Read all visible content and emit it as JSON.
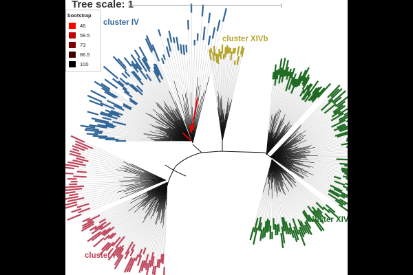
{
  "scale": {
    "title": "Tree scale: 1"
  },
  "legend": {
    "title": "bootstrap",
    "items": [
      {
        "label": "46",
        "color": "#ff0000"
      },
      {
        "label": "59.5",
        "color": "#c00000"
      },
      {
        "label": "73",
        "color": "#800000"
      },
      {
        "label": "86.5",
        "color": "#400000"
      },
      {
        "label": "100",
        "color": "#000000"
      }
    ]
  },
  "clusters": [
    {
      "id": "iv",
      "label": "cluster IV",
      "color": "#336699"
    },
    {
      "id": "xivb",
      "label": "cluster XIVb",
      "color": "#b5a52d"
    },
    {
      "id": "xiva",
      "label": "cluster XIVa",
      "color": "#1f6b23"
    },
    {
      "id": "i",
      "label": "cluster I",
      "color": "#c0485e"
    }
  ],
  "arrow": {
    "color": "#ee0000"
  }
}
